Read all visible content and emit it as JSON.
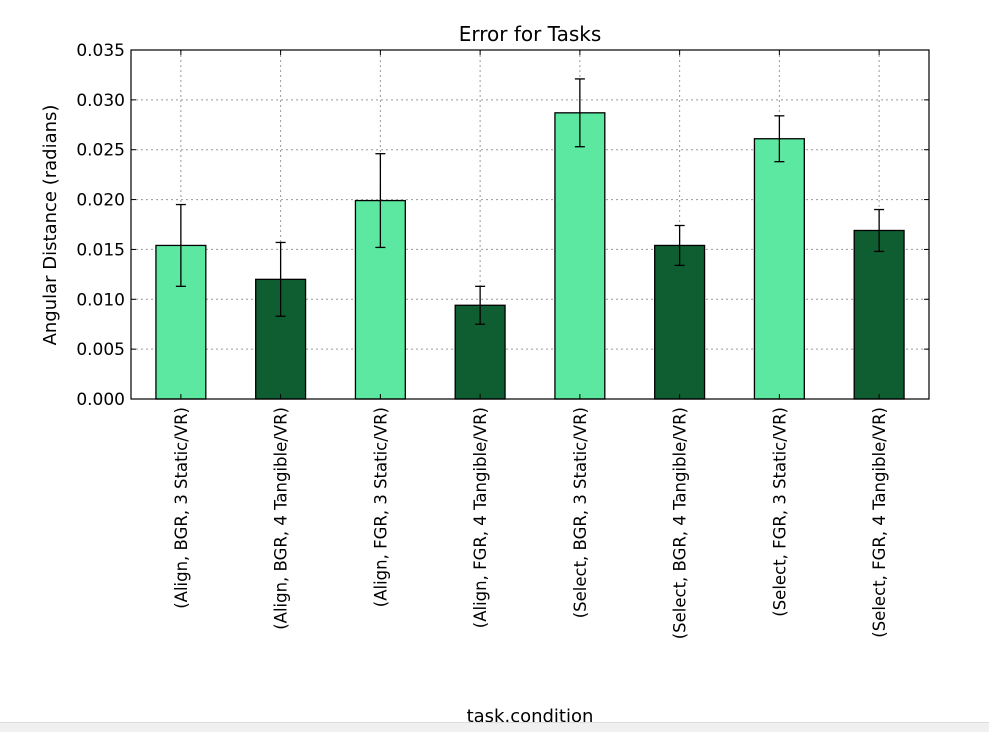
{
  "chart_data": {
    "type": "bar",
    "title": "Error for Tasks",
    "xlabel": "task.condition",
    "ylabel": "Angular Distance (radians)",
    "ylim": [
      0,
      0.035
    ],
    "yticks": [
      "0.000",
      "0.005",
      "0.010",
      "0.015",
      "0.020",
      "0.025",
      "0.030",
      "0.035"
    ],
    "grid": true,
    "categories": [
      "(Align, BGR, 3 Static/VR)",
      "(Align, BGR, 4 Tangible/VR)",
      "(Align, FGR, 3 Static/VR)",
      "(Align, FGR, 4 Tangible/VR)",
      "(Select, BGR, 3 Static/VR)",
      "(Select, BGR, 4 Tangible/VR)",
      "(Select, FGR, 3 Static/VR)",
      "(Select, FGR, 4 Tangible/VR)"
    ],
    "values": [
      0.0154,
      0.012,
      0.0199,
      0.0094,
      0.0287,
      0.0154,
      0.0261,
      0.0169
    ],
    "errors": [
      0.0041,
      0.0037,
      0.0047,
      0.0019,
      0.0034,
      0.002,
      0.0023,
      0.0021
    ],
    "bar_colors": [
      "#5ce8a0",
      "#0f5e31",
      "#5ce8a0",
      "#0f5e31",
      "#5ce8a0",
      "#0f5e31",
      "#5ce8a0",
      "#0f5e31"
    ]
  }
}
